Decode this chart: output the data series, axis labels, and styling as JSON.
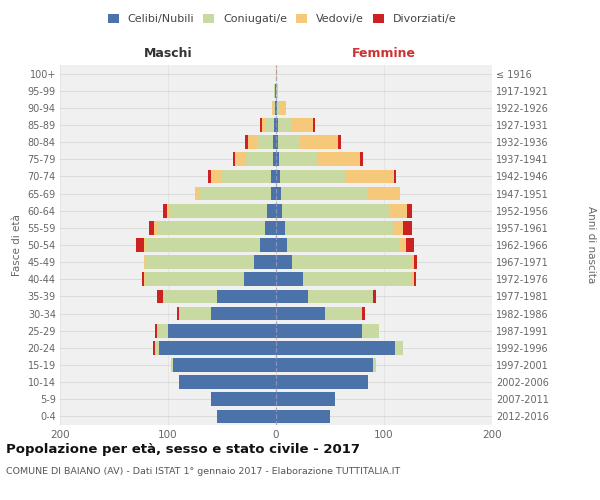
{
  "age_groups": [
    "0-4",
    "5-9",
    "10-14",
    "15-19",
    "20-24",
    "25-29",
    "30-34",
    "35-39",
    "40-44",
    "45-49",
    "50-54",
    "55-59",
    "60-64",
    "65-69",
    "70-74",
    "75-79",
    "80-84",
    "85-89",
    "90-94",
    "95-99",
    "100+"
  ],
  "birth_years": [
    "2012-2016",
    "2007-2011",
    "2002-2006",
    "1997-2001",
    "1992-1996",
    "1987-1991",
    "1982-1986",
    "1977-1981",
    "1972-1976",
    "1967-1971",
    "1962-1966",
    "1957-1961",
    "1952-1956",
    "1947-1951",
    "1942-1946",
    "1937-1941",
    "1932-1936",
    "1927-1931",
    "1922-1926",
    "1917-1921",
    "≤ 1916"
  ],
  "male_celibi": [
    55,
    60,
    90,
    95,
    108,
    100,
    60,
    55,
    30,
    20,
    15,
    10,
    8,
    5,
    5,
    3,
    3,
    2,
    1,
    1,
    0
  ],
  "male_coniugati": [
    0,
    0,
    0,
    2,
    4,
    10,
    30,
    50,
    90,
    100,
    105,
    100,
    90,
    65,
    45,
    25,
    15,
    8,
    2,
    1,
    0
  ],
  "male_vedovi": [
    0,
    0,
    0,
    0,
    0,
    0,
    0,
    0,
    2,
    2,
    2,
    3,
    3,
    5,
    10,
    10,
    8,
    3,
    1,
    0,
    0
  ],
  "male_divorziati": [
    0,
    0,
    0,
    0,
    2,
    2,
    2,
    5,
    2,
    0,
    8,
    5,
    4,
    0,
    3,
    2,
    3,
    2,
    0,
    0,
    0
  ],
  "female_celibi": [
    50,
    55,
    85,
    90,
    110,
    80,
    45,
    30,
    25,
    15,
    10,
    8,
    6,
    5,
    4,
    3,
    2,
    2,
    1,
    0,
    0
  ],
  "female_coniugati": [
    0,
    0,
    0,
    3,
    8,
    15,
    35,
    60,
    100,
    110,
    105,
    100,
    100,
    80,
    60,
    35,
    20,
    12,
    3,
    1,
    0
  ],
  "female_vedovi": [
    0,
    0,
    0,
    0,
    0,
    0,
    0,
    0,
    3,
    3,
    5,
    10,
    15,
    30,
    45,
    40,
    35,
    20,
    5,
    1,
    1
  ],
  "female_divorziati": [
    0,
    0,
    0,
    0,
    0,
    0,
    2,
    3,
    2,
    3,
    8,
    8,
    5,
    0,
    2,
    3,
    3,
    2,
    0,
    0,
    0
  ],
  "color_celibi": "#4c72aa",
  "color_coniugati": "#c8daa2",
  "color_vedovi": "#f6c87a",
  "color_divorziati": "#cc2222",
  "title": "Popolazione per età, sesso e stato civile - 2017",
  "subtitle": "COMUNE DI BAIANO (AV) - Dati ISTAT 1° gennaio 2017 - Elaborazione TUTTITALIA.IT",
  "xlabel_left": "Maschi",
  "xlabel_right": "Femmine",
  "ylabel_left": "Fasce di età",
  "ylabel_right": "Anni di nascita",
  "xlim": 200,
  "bg_color": "#ffffff",
  "plot_bg": "#f0f0f0",
  "grid_color": "#cccccc"
}
